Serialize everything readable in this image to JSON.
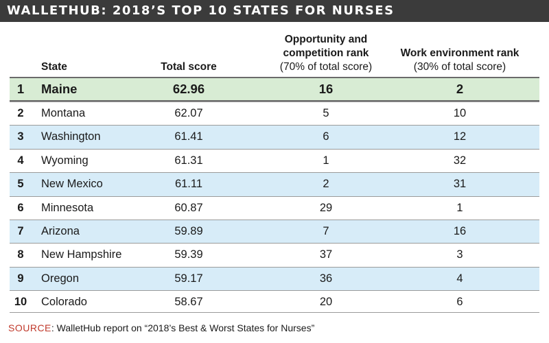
{
  "title": "WALLETHUB: 2018’S TOP 10 STATES FOR NURSES",
  "headers": {
    "state": "State",
    "total": "Total score",
    "opp_line1": "Opportunity and",
    "opp_line2": "competition rank",
    "opp_note": "(70% of total score)",
    "work_line1": "Work environment rank",
    "work_note": "(30% of total score)"
  },
  "colors": {
    "title_bar": "#3b3b3b",
    "highlight_row": "#d8ecd4",
    "alternate_row": "#d7ecf8",
    "source_label": "#c0392b"
  },
  "source": {
    "label": "SOURCE",
    "text": ": WalletHub report on “2018’s Best & Worst States for Nurses”"
  },
  "chart_data": {
    "type": "table",
    "title": "WALLETHUB: 2018’S TOP 10 STATES FOR NURSES",
    "columns": [
      "",
      "State",
      "Total score",
      "Opportunity and competition rank (70% of total score)",
      "Work environment rank (30% of total score)"
    ],
    "rows": [
      {
        "rank": "1",
        "state": "Maine",
        "total": "62.96",
        "opp": "16",
        "work": "2"
      },
      {
        "rank": "2",
        "state": "Montana",
        "total": "62.07",
        "opp": "5",
        "work": "10"
      },
      {
        "rank": "3",
        "state": "Washington",
        "total": "61.41",
        "opp": "6",
        "work": "12"
      },
      {
        "rank": "4",
        "state": "Wyoming",
        "total": "61.31",
        "opp": "1",
        "work": "32"
      },
      {
        "rank": "5",
        "state": "New Mexico",
        "total": "61.11",
        "opp": "2",
        "work": "31"
      },
      {
        "rank": "6",
        "state": "Minnesota",
        "total": "60.87",
        "opp": "29",
        "work": "1"
      },
      {
        "rank": "7",
        "state": "Arizona",
        "total": "59.89",
        "opp": "7",
        "work": "16"
      },
      {
        "rank": "8",
        "state": "New Hampshire",
        "total": "59.39",
        "opp": "37",
        "work": "3"
      },
      {
        "rank": "9",
        "state": "Oregon",
        "total": "59.17",
        "opp": "36",
        "work": "4"
      },
      {
        "rank": "10",
        "state": "Colorado",
        "total": "58.67",
        "opp": "20",
        "work": "6"
      }
    ]
  }
}
